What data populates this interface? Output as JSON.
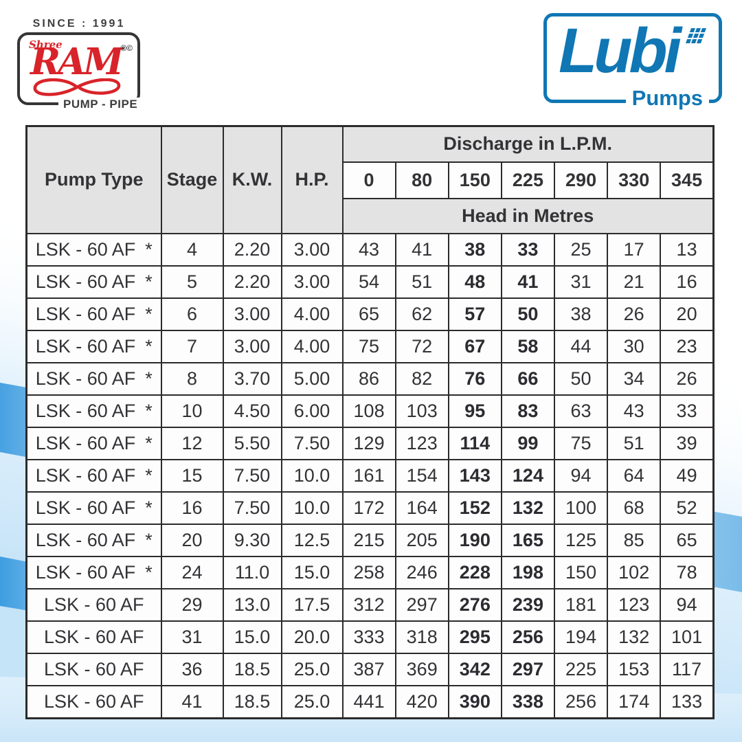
{
  "branding": {
    "ram": {
      "since": "SINCE : 1991",
      "shree": "Shree",
      "name": "RAM",
      "reg_marks": "®©",
      "footer": "PUMP - PIPE",
      "red": "#d9232a"
    },
    "lubi": {
      "name": "Lubi",
      "footer": "Pumps",
      "blue": "#1077b4"
    }
  },
  "table": {
    "columns": {
      "pump_type": "Pump Type",
      "stage": "Stage",
      "kw": "K.W.",
      "hp": "H.P."
    },
    "discharge_title": "Discharge in L.P.M.",
    "discharge_values": [
      "0",
      "80",
      "150",
      "225",
      "290",
      "330",
      "345"
    ],
    "head_title": "Head in Metres",
    "bold_value_columns": [
      2,
      3
    ],
    "rows": [
      {
        "pump_type": "LSK - 60 AF",
        "star": "*",
        "stage": "4",
        "kw": "2.20",
        "hp": "3.00",
        "heads": [
          "43",
          "41",
          "38",
          "33",
          "25",
          "17",
          "13"
        ]
      },
      {
        "pump_type": "LSK - 60 AF",
        "star": "*",
        "stage": "5",
        "kw": "2.20",
        "hp": "3.00",
        "heads": [
          "54",
          "51",
          "48",
          "41",
          "31",
          "21",
          "16"
        ]
      },
      {
        "pump_type": "LSK - 60 AF",
        "star": "*",
        "stage": "6",
        "kw": "3.00",
        "hp": "4.00",
        "heads": [
          "65",
          "62",
          "57",
          "50",
          "38",
          "26",
          "20"
        ]
      },
      {
        "pump_type": "LSK - 60 AF",
        "star": "*",
        "stage": "7",
        "kw": "3.00",
        "hp": "4.00",
        "heads": [
          "75",
          "72",
          "67",
          "58",
          "44",
          "30",
          "23"
        ]
      },
      {
        "pump_type": "LSK - 60 AF",
        "star": "*",
        "stage": "8",
        "kw": "3.70",
        "hp": "5.00",
        "heads": [
          "86",
          "82",
          "76",
          "66",
          "50",
          "34",
          "26"
        ]
      },
      {
        "pump_type": "LSK - 60 AF",
        "star": "*",
        "stage": "10",
        "kw": "4.50",
        "hp": "6.00",
        "heads": [
          "108",
          "103",
          "95",
          "83",
          "63",
          "43",
          "33"
        ]
      },
      {
        "pump_type": "LSK - 60 AF",
        "star": "*",
        "stage": "12",
        "kw": "5.50",
        "hp": "7.50",
        "heads": [
          "129",
          "123",
          "114",
          "99",
          "75",
          "51",
          "39"
        ]
      },
      {
        "pump_type": "LSK - 60 AF",
        "star": "*",
        "stage": "15",
        "kw": "7.50",
        "hp": "10.0",
        "heads": [
          "161",
          "154",
          "143",
          "124",
          "94",
          "64",
          "49"
        ]
      },
      {
        "pump_type": "LSK - 60 AF",
        "star": "*",
        "stage": "16",
        "kw": "7.50",
        "hp": "10.0",
        "heads": [
          "172",
          "164",
          "152",
          "132",
          "100",
          "68",
          "52"
        ]
      },
      {
        "pump_type": "LSK - 60 AF",
        "star": "*",
        "stage": "20",
        "kw": "9.30",
        "hp": "12.5",
        "heads": [
          "215",
          "205",
          "190",
          "165",
          "125",
          "85",
          "65"
        ]
      },
      {
        "pump_type": "LSK - 60 AF",
        "star": "*",
        "stage": "24",
        "kw": "11.0",
        "hp": "15.0",
        "heads": [
          "258",
          "246",
          "228",
          "198",
          "150",
          "102",
          "78"
        ]
      },
      {
        "pump_type": "LSK - 60 AF",
        "star": "",
        "stage": "29",
        "kw": "13.0",
        "hp": "17.5",
        "heads": [
          "312",
          "297",
          "276",
          "239",
          "181",
          "123",
          "94"
        ]
      },
      {
        "pump_type": "LSK - 60 AF",
        "star": "",
        "stage": "31",
        "kw": "15.0",
        "hp": "20.0",
        "heads": [
          "333",
          "318",
          "295",
          "256",
          "194",
          "132",
          "101"
        ]
      },
      {
        "pump_type": "LSK - 60 AF",
        "star": "",
        "stage": "36",
        "kw": "18.5",
        "hp": "25.0",
        "heads": [
          "387",
          "369",
          "342",
          "297",
          "225",
          "153",
          "117"
        ]
      },
      {
        "pump_type": "LSK - 60 AF",
        "star": "",
        "stage": "41",
        "kw": "18.5",
        "hp": "25.0",
        "heads": [
          "441",
          "420",
          "390",
          "338",
          "256",
          "174",
          "133"
        ]
      }
    ]
  }
}
